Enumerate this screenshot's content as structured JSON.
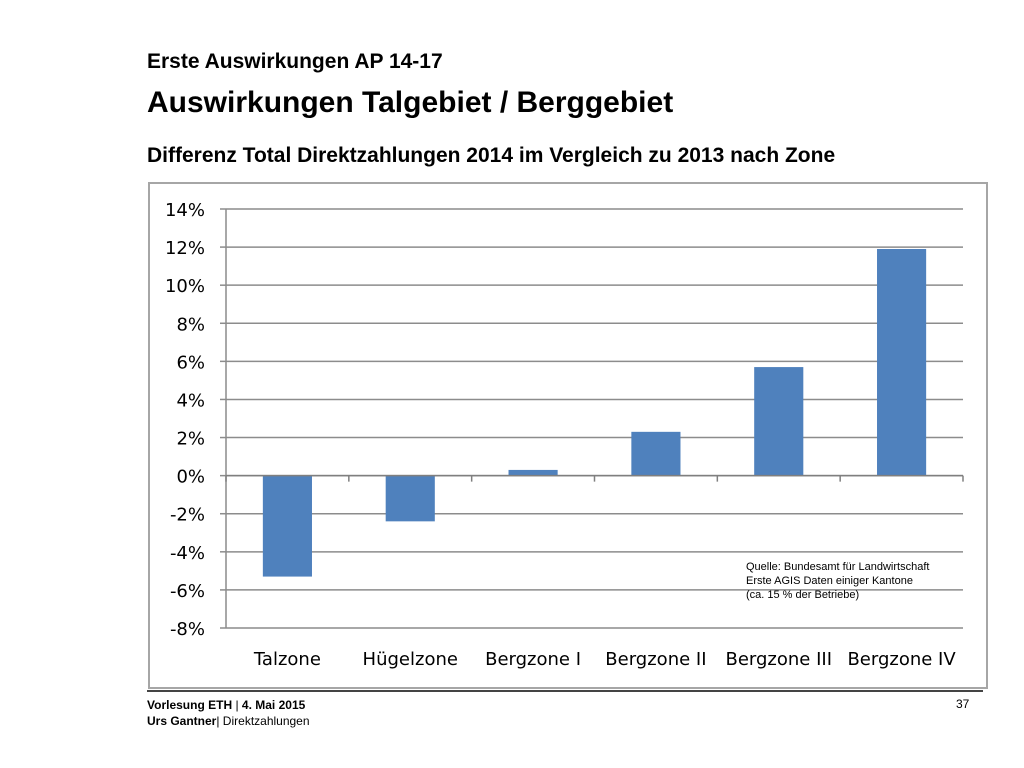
{
  "slide": {
    "subheading": "Erste Auswirkungen AP 14-17",
    "heading": "Auswirkungen Talgebiet / Berggebiet",
    "chart_heading": "Differenz Total Direktzahlungen 2014  im Vergleich zu 2013 nach Zone"
  },
  "source_note": {
    "line1": "Quelle: Bundesamt für Landwirtschaft",
    "line2": "Erste AGIS Daten  einiger Kantone",
    "line3": "(ca. 15 % der Betriebe)"
  },
  "footer": {
    "lecture": "Vorlesung ETH",
    "separator": " |  ",
    "date": "4. Mai 2015",
    "author": "Urs Gantner",
    "topic": "| Direktzahlungen",
    "page_number": "37"
  },
  "chart_data": {
    "type": "bar",
    "categories": [
      "Talzone",
      "Hügelzone",
      "Bergzone I",
      "Bergzone II",
      "Bergzone III",
      "Bergzone IV"
    ],
    "values": [
      -5.3,
      -2.4,
      0.3,
      2.3,
      5.7,
      11.9
    ],
    "y_ticks": [
      "14%",
      "12%",
      "10%",
      "8%",
      "6%",
      "4%",
      "2%",
      "0%",
      "-2%",
      "-4%",
      "-6%",
      "-8%"
    ],
    "ylim": [
      -8,
      14
    ],
    "grid": true,
    "bar_color": "#4f81bd",
    "grid_color": "#8c8c8c",
    "border_color": "#a6a6a6"
  }
}
